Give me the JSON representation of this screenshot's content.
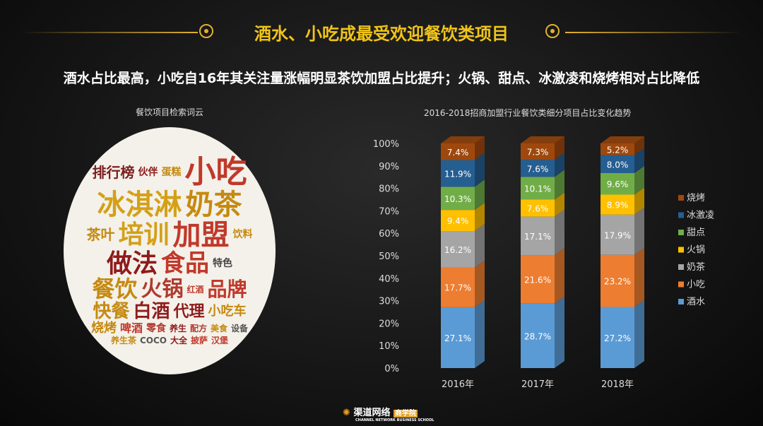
{
  "title": "酒水、小吃成最受欢迎餐饮类项目",
  "subtitle": "酒水占比最高，小吃自16年其关注量涨幅明显茶饮加盟占比提升；火锅、甜点、冰激凌和烧烤相对占比降低",
  "word_cloud": {
    "title": "餐饮项目检索词云",
    "words": [
      "小吃",
      "冰淇淋",
      "奶茶",
      "培训",
      "加盟",
      "做法",
      "食品",
      "餐饮",
      "火锅",
      "品牌",
      "快餐",
      "白酒",
      "代理",
      "排行榜",
      "茶叶",
      "小吃车",
      "烧烤",
      "啤酒",
      "零食",
      "特色",
      "红酒",
      "饮料",
      "养生",
      "配方",
      "美食",
      "伙伴",
      "设备",
      "蛋糕",
      "养生茶",
      "COCO",
      "大全",
      "披萨",
      "汉堡"
    ]
  },
  "chart_data": {
    "type": "bar",
    "stacked": true,
    "title": "2016-2018招商加盟行业餐饮类细分项目占比变化趋势",
    "categories": [
      "2016年",
      "2017年",
      "2018年"
    ],
    "y_ticks": [
      "0%",
      "10%",
      "20%",
      "30%",
      "40%",
      "50%",
      "60%",
      "70%",
      "80%",
      "90%",
      "100%"
    ],
    "ylim": [
      0,
      100
    ],
    "legend_position": "right",
    "series": [
      {
        "name": "酒水",
        "color": "#5b9bd5",
        "values": [
          27.1,
          28.7,
          27.2
        ],
        "labels": [
          "27.1%",
          "28.7%",
          "27.2%"
        ]
      },
      {
        "name": "小吃",
        "color": "#ed7d31",
        "values": [
          17.7,
          21.6,
          23.2
        ],
        "labels": [
          "17.7%",
          "21.6%",
          "23.2%"
        ]
      },
      {
        "name": "奶茶",
        "color": "#a5a5a5",
        "values": [
          16.2,
          17.1,
          17.9
        ],
        "labels": [
          "16.2%",
          "17.1%",
          "17.9%"
        ]
      },
      {
        "name": "火锅",
        "color": "#ffc000",
        "values": [
          9.4,
          7.6,
          8.9
        ],
        "labels": [
          "9.4%",
          "7.6%",
          "8.9%"
        ]
      },
      {
        "name": "甜点",
        "color": "#70ad47",
        "values": [
          10.3,
          10.1,
          9.6
        ],
        "labels": [
          "10.3%",
          "10.1%",
          "9.6%"
        ]
      },
      {
        "name": "冰激凌",
        "color": "#255e91",
        "values": [
          11.9,
          7.6,
          8.0
        ],
        "labels": [
          "11.9%",
          "7.6%",
          "8.0%"
        ]
      },
      {
        "name": "烧烤",
        "color": "#9e480e",
        "values": [
          7.4,
          7.3,
          5.2
        ],
        "labels": [
          "7.4%",
          "7.3%",
          "5.2%"
        ]
      }
    ]
  },
  "logo": {
    "name": "渠道网络",
    "badge": "商学院",
    "english": "CHANNEL NETWORK BUSINESS SCHOOL"
  }
}
